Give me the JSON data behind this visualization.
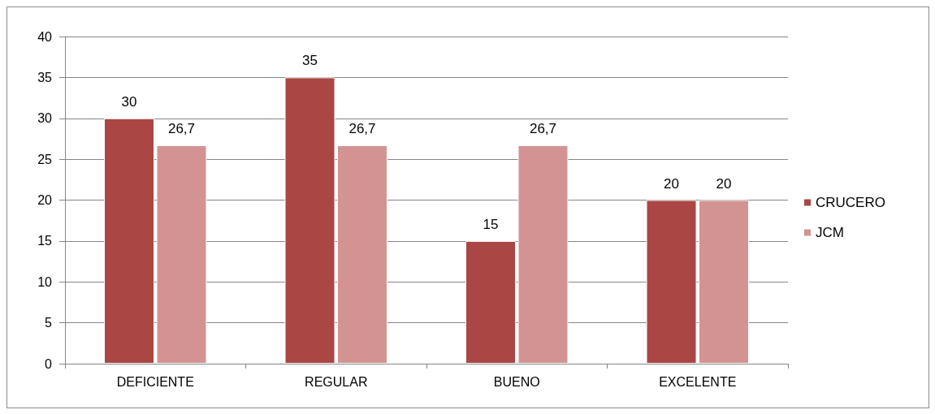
{
  "chart_data": {
    "type": "bar",
    "categories": [
      "DEFICIENTE",
      "REGULAR",
      "BUENO",
      "EXCELENTE"
    ],
    "series": [
      {
        "name": "CRUCERO",
        "color": "#aa4643",
        "values": [
          30,
          35,
          15,
          20
        ],
        "value_labels": [
          "30",
          "35",
          "15",
          "20"
        ]
      },
      {
        "name": "JCM",
        "color": "#d39392",
        "values": [
          26.7,
          26.7,
          26.7,
          20
        ],
        "value_labels": [
          "26,7",
          "26,7",
          "26,7",
          "20"
        ]
      }
    ],
    "ylim": [
      0,
      40
    ],
    "yticks": [
      0,
      5,
      10,
      15,
      20,
      25,
      30,
      35,
      40
    ],
    "grid": "y",
    "legend": "right"
  }
}
